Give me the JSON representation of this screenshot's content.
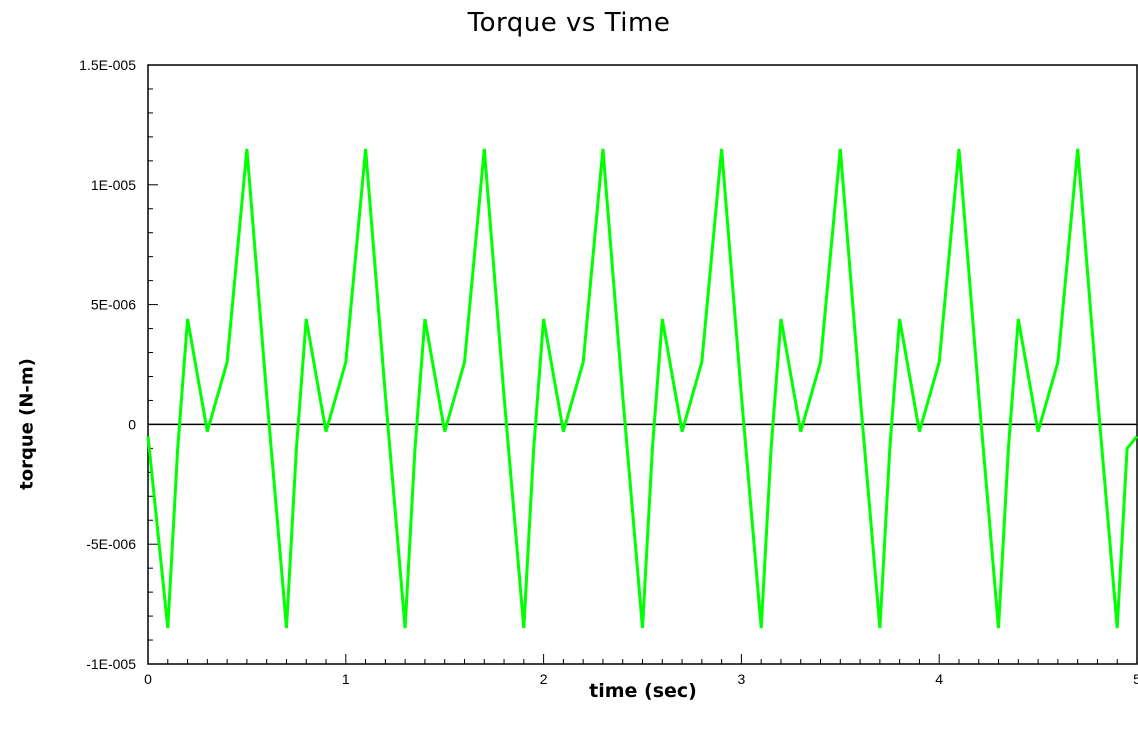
{
  "chart_data": {
    "type": "line",
    "title": "Torque vs Time",
    "xlabel": "time (sec)",
    "ylabel": "torque (N-m)",
    "xlim": [
      0,
      5
    ],
    "ylim": [
      -1e-05,
      1.5e-05
    ],
    "x_ticks": [
      0,
      1,
      2,
      3,
      4,
      5
    ],
    "x_tick_labels": [
      "0",
      "1",
      "2",
      "3",
      "4",
      "5"
    ],
    "y_ticks": [
      -1e-05,
      -5e-06,
      0,
      5e-06,
      1e-05,
      1.5e-05
    ],
    "y_tick_labels": [
      "-1E-005",
      "-5E-006",
      "0",
      "5E-006",
      "1E-005",
      "1.5E-005"
    ],
    "grid": false,
    "zero_line": true,
    "series": [
      {
        "color": "#00ff00",
        "x": [
          0,
          0.1,
          0.15,
          0.2,
          0.3,
          0.4,
          0.5,
          0.6,
          0.7,
          0.75,
          0.8,
          0.9,
          1.0,
          1.1,
          1.2,
          1.3,
          1.35,
          1.4,
          1.5,
          1.6,
          1.7,
          1.8,
          1.9,
          1.95,
          2.0,
          2.1,
          2.2,
          2.3,
          2.4,
          2.5,
          2.55,
          2.6,
          2.7,
          2.8,
          2.9,
          3.0,
          3.1,
          3.15,
          3.2,
          3.3,
          3.4,
          3.5,
          3.6,
          3.7,
          3.75,
          3.8,
          3.9,
          4.0,
          4.1,
          4.2,
          4.3,
          4.35,
          4.4,
          4.5,
          4.6,
          4.7,
          4.8,
          4.9,
          4.95,
          5.0
        ],
        "y": [
          -5e-07,
          -8.5e-06,
          -1e-06,
          4.4e-06,
          -3e-07,
          2.6e-06,
          1.15e-05,
          1.2e-06,
          -8.5e-06,
          -1e-06,
          4.4e-06,
          -3e-07,
          2.6e-06,
          1.15e-05,
          1.2e-06,
          -8.5e-06,
          -1e-06,
          4.4e-06,
          -3e-07,
          2.6e-06,
          1.15e-05,
          1.2e-06,
          -8.5e-06,
          -1e-06,
          4.4e-06,
          -3e-07,
          2.6e-06,
          1.15e-05,
          1.2e-06,
          -8.5e-06,
          -1e-06,
          4.4e-06,
          -3e-07,
          2.6e-06,
          1.15e-05,
          1.2e-06,
          -8.5e-06,
          -1e-06,
          4.4e-06,
          -3e-07,
          2.6e-06,
          1.15e-05,
          1.2e-06,
          -8.5e-06,
          -1e-06,
          4.4e-06,
          -3e-07,
          2.6e-06,
          1.15e-05,
          1.2e-06,
          -8.5e-06,
          -1e-06,
          4.4e-06,
          -3e-07,
          2.6e-06,
          1.15e-05,
          1.2e-06,
          -8.5e-06,
          -1e-06,
          -5e-07
        ]
      }
    ]
  }
}
